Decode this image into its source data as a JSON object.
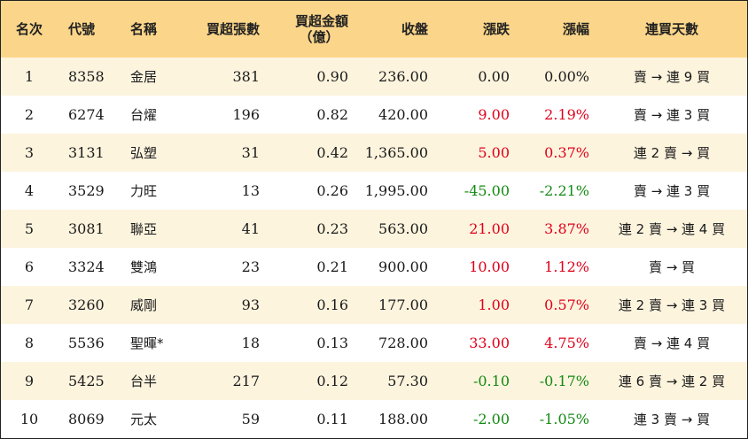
{
  "colors": {
    "header_bg": "#fbd589",
    "odd_row_bg": "#fdf4de",
    "even_row_bg": "#ffffff",
    "up": "#e0001b",
    "down": "#138a13"
  },
  "headers": {
    "rank": "名次",
    "code": "代號",
    "name": "名稱",
    "shares": "買超張數",
    "amount_line1": "買超金額",
    "amount_line2": "（億）",
    "close": "收盤",
    "change": "漲跌",
    "pct": "漲幅",
    "streak": "連買天數"
  },
  "rows": [
    {
      "rank": "1",
      "code": "8358",
      "name": "金居",
      "shares": "381",
      "amount": "0.90",
      "close": "236.00",
      "change": "0.00",
      "pct": "0.00%",
      "dir": "flat",
      "streak": "賣 → 連 9 買"
    },
    {
      "rank": "2",
      "code": "6274",
      "name": "台燿",
      "shares": "196",
      "amount": "0.82",
      "close": "420.00",
      "change": "9.00",
      "pct": "2.19%",
      "dir": "up",
      "streak": "賣 → 連 3 買"
    },
    {
      "rank": "3",
      "code": "3131",
      "name": "弘塑",
      "shares": "31",
      "amount": "0.42",
      "close": "1,365.00",
      "change": "5.00",
      "pct": "0.37%",
      "dir": "up",
      "streak": "連 2 賣 → 買"
    },
    {
      "rank": "4",
      "code": "3529",
      "name": "力旺",
      "shares": "13",
      "amount": "0.26",
      "close": "1,995.00",
      "change": "-45.00",
      "pct": "-2.21%",
      "dir": "down",
      "streak": "賣 → 連 3 買"
    },
    {
      "rank": "5",
      "code": "3081",
      "name": "聯亞",
      "shares": "41",
      "amount": "0.23",
      "close": "563.00",
      "change": "21.00",
      "pct": "3.87%",
      "dir": "up",
      "streak": "連 2 賣 → 連 4 買"
    },
    {
      "rank": "6",
      "code": "3324",
      "name": "雙鴻",
      "shares": "23",
      "amount": "0.21",
      "close": "900.00",
      "change": "10.00",
      "pct": "1.12%",
      "dir": "up",
      "streak": "賣 → 買"
    },
    {
      "rank": "7",
      "code": "3260",
      "name": "威剛",
      "shares": "93",
      "amount": "0.16",
      "close": "177.00",
      "change": "1.00",
      "pct": "0.57%",
      "dir": "up",
      "streak": "連 2 賣 → 連 3 買"
    },
    {
      "rank": "8",
      "code": "5536",
      "name": "聖暉*",
      "shares": "18",
      "amount": "0.13",
      "close": "728.00",
      "change": "33.00",
      "pct": "4.75%",
      "dir": "up",
      "streak": "賣 → 連 4 買"
    },
    {
      "rank": "9",
      "code": "5425",
      "name": "台半",
      "shares": "217",
      "amount": "0.12",
      "close": "57.30",
      "change": "-0.10",
      "pct": "-0.17%",
      "dir": "down",
      "streak": "連 6 賣 → 連 2 買"
    },
    {
      "rank": "10",
      "code": "8069",
      "name": "元太",
      "shares": "59",
      "amount": "0.11",
      "close": "188.00",
      "change": "-2.00",
      "pct": "-1.05%",
      "dir": "down",
      "streak": "連 3 賣 → 買"
    }
  ]
}
